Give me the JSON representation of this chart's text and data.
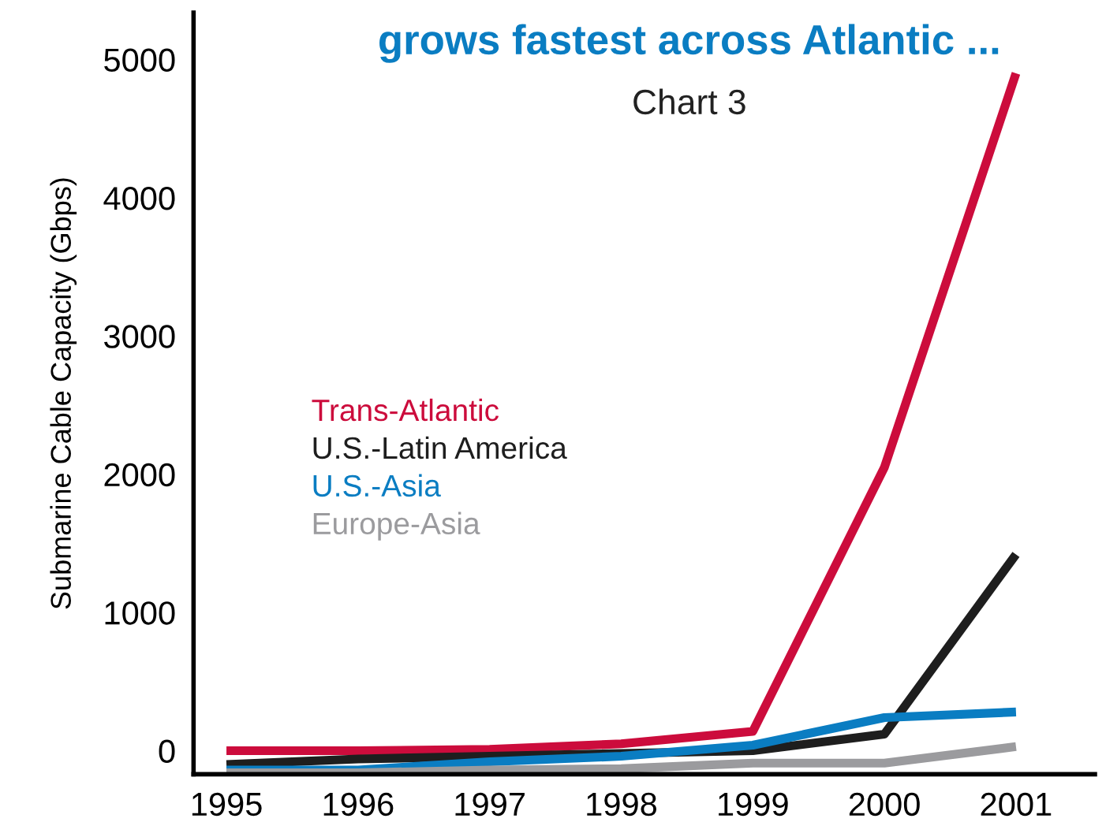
{
  "chart_data": {
    "type": "line",
    "title": "grows fastest across Atlantic ...",
    "subtitle": "Chart 3",
    "ylabel": "Submarine Cable Capacity (Gbps)",
    "x": [
      1995,
      1996,
      1997,
      1998,
      1999,
      2000,
      2001
    ],
    "xlim": [
      1994.75,
      2001.6
    ],
    "xticks": [
      1995,
      1996,
      1997,
      1998,
      1999,
      2000,
      2001
    ],
    "ylim": [
      -170,
      5340
    ],
    "yticks": [
      0,
      1000,
      2000,
      3000,
      4000,
      5000
    ],
    "legend": "center left",
    "grid": false,
    "series": [
      {
        "name": "Trans-Atlantic",
        "color": "#cc0c3c",
        "values": [
          0,
          0,
          10,
          50,
          140,
          2050,
          4900
        ]
      },
      {
        "name": "U.S.-Latin America",
        "color": "#1e1e1e",
        "values": [
          -100,
          -60,
          -40,
          -20,
          0,
          120,
          1420
        ]
      },
      {
        "name": "U.S.-Asia",
        "color": "#0a7dc2",
        "values": [
          -140,
          -140,
          -80,
          -40,
          40,
          240,
          280
        ]
      },
      {
        "name": "Europe-Asia",
        "color": "#9b9b9e",
        "values": [
          -160,
          -160,
          -140,
          -130,
          -90,
          -90,
          30
        ]
      }
    ]
  }
}
